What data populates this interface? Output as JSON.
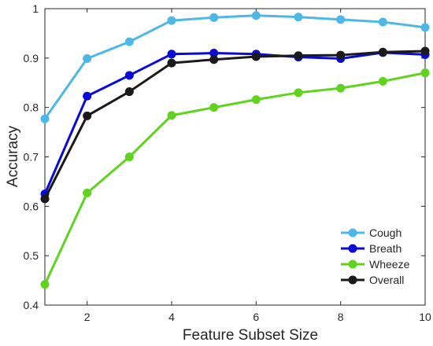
{
  "chart_data": {
    "type": "line",
    "xlabel": "Feature Subset Size",
    "ylabel": "Accuracy",
    "xlim": [
      1,
      10
    ],
    "ylim": [
      0.4,
      1.0
    ],
    "xticks": [
      2,
      4,
      6,
      8,
      10
    ],
    "yticks": [
      0.4,
      0.5,
      0.6,
      0.7,
      0.8,
      0.9,
      1.0
    ],
    "ytick_labels": [
      "0.4",
      "0.5",
      "0.6",
      "0.7",
      "0.8",
      "0.9",
      "1"
    ],
    "grid": false,
    "legend_position": "bottom-right",
    "x": [
      1,
      2,
      3,
      4,
      5,
      6,
      7,
      8,
      9,
      10
    ],
    "series": [
      {
        "name": "Cough",
        "color": "#4db8e8",
        "values": [
          0.777,
          0.899,
          0.933,
          0.976,
          0.982,
          0.986,
          0.983,
          0.978,
          0.973,
          0.962
        ]
      },
      {
        "name": "Breath",
        "color": "#0a0ad8",
        "values": [
          0.625,
          0.823,
          0.865,
          0.908,
          0.91,
          0.908,
          0.902,
          0.899,
          0.911,
          0.907
        ]
      },
      {
        "name": "Wheeze",
        "color": "#5fd31f",
        "values": [
          0.442,
          0.627,
          0.7,
          0.784,
          0.8,
          0.816,
          0.83,
          0.839,
          0.853,
          0.87
        ]
      },
      {
        "name": "Overall",
        "color": "#1a1a1a",
        "values": [
          0.615,
          0.783,
          0.832,
          0.89,
          0.897,
          0.903,
          0.905,
          0.906,
          0.912,
          0.914
        ]
      }
    ]
  }
}
